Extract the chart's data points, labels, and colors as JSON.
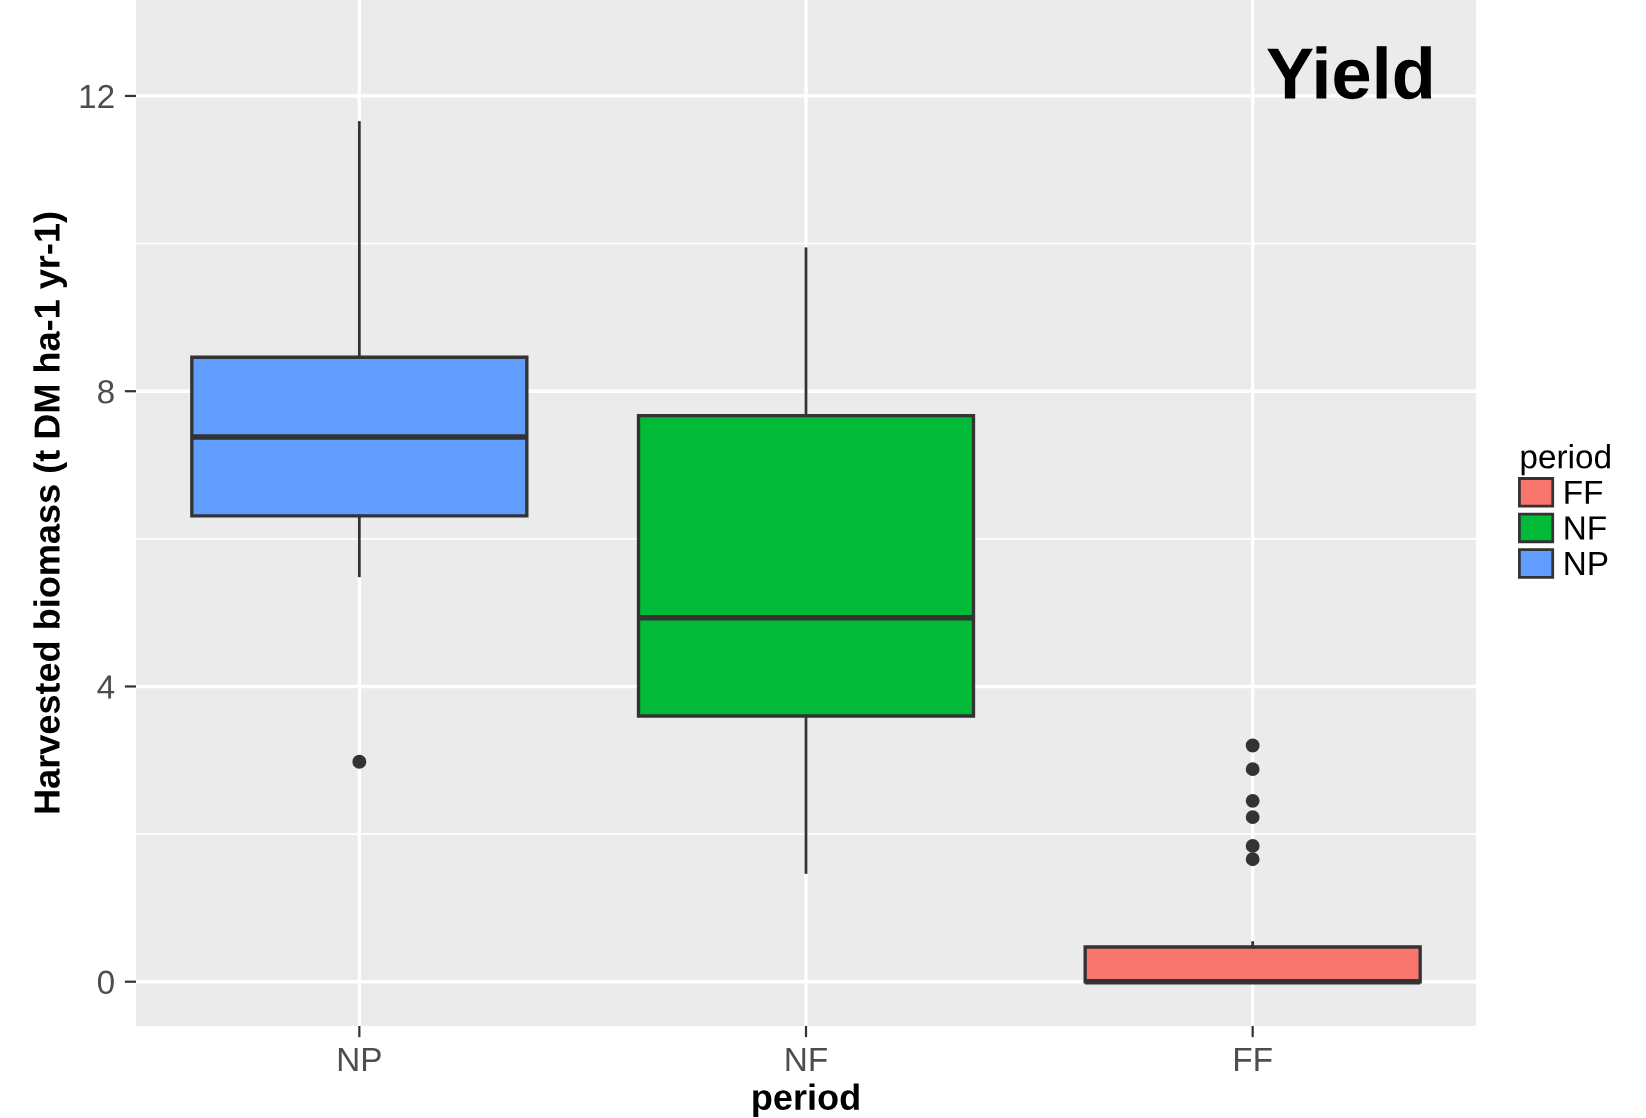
{
  "chart_data": {
    "type": "box",
    "title": "Yield",
    "xlabel": "period",
    "ylabel": "Harvested biomass (t DM ha-1 yr-1)",
    "legend_title": "period",
    "categories": [
      "NP",
      "NF",
      "FF"
    ],
    "series": [
      {
        "name": "NP",
        "color": "#619cff",
        "boxes": [
          {
            "low": 5.5,
            "q1": 6.31,
            "median": 7.38,
            "q3": 8.46,
            "high": 11.64,
            "outliers": [
              2.98
            ]
          },
          null,
          null
        ]
      },
      {
        "name": "NF",
        "color": "#00ba38",
        "boxes": [
          null,
          {
            "low": 1.48,
            "q1": 3.6,
            "median": 4.93,
            "q3": 7.67,
            "high": 9.93
          },
          null
        ]
      },
      {
        "name": "FF",
        "color": "#f8766d",
        "boxes": [
          null,
          null,
          {
            "low": 0,
            "q1": 0,
            "median": 0,
            "q3": 0.47,
            "high": 0.53,
            "outliers": [
              3.2,
              2.88,
              2.45,
              2.23,
              1.84,
              1.66
            ]
          }
        ]
      }
    ],
    "ylim": [
      -0.6,
      13.3
    ],
    "yticks": [
      0,
      4,
      8,
      12
    ],
    "grid": true,
    "legend": "right"
  }
}
